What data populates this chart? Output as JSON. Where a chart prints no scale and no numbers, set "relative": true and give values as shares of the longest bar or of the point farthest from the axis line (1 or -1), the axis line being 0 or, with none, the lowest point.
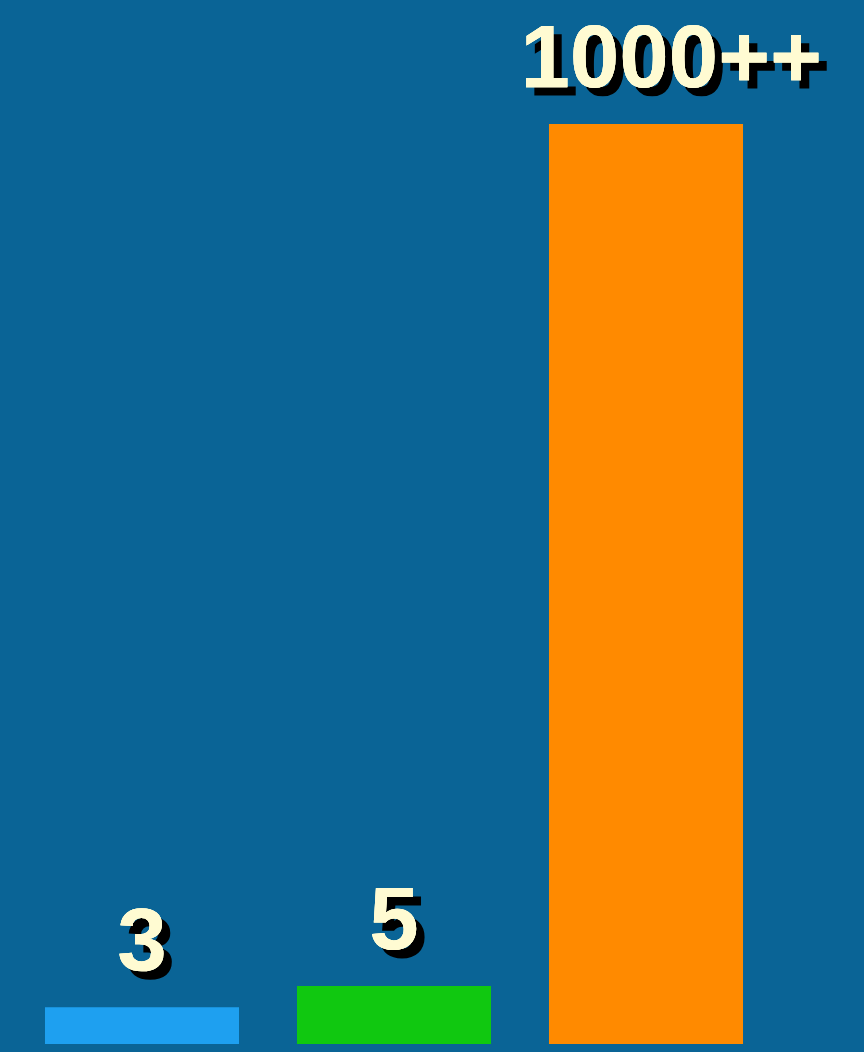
{
  "chart_data": {
    "type": "bar",
    "relative": true,
    "categories": [
      null,
      null,
      null
    ],
    "series": [
      {
        "colors": [
          "#1ea0f0",
          "#10c810",
          "#ff8a00"
        ],
        "values": [
          0.04,
          0.063,
          1
        ]
      }
    ],
    "value_labels": [
      "3",
      "5",
      "1000++"
    ]
  }
}
